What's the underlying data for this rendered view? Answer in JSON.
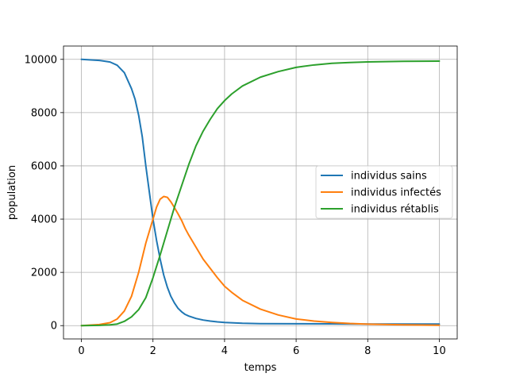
{
  "chart_data": {
    "type": "line",
    "title": "",
    "xlabel": "temps",
    "ylabel": "population",
    "xlim": [
      -0.5,
      10.5
    ],
    "ylim": [
      -500,
      10500
    ],
    "xticks": [
      0,
      2,
      4,
      6,
      8,
      10
    ],
    "yticks": [
      0,
      2000,
      4000,
      6000,
      8000,
      10000
    ],
    "grid": true,
    "legend_position": "center-right",
    "series": [
      {
        "name": "individus sains",
        "color": "#1f77b4",
        "x": [
          0,
          0.5,
          0.8,
          1.0,
          1.2,
          1.4,
          1.5,
          1.6,
          1.7,
          1.8,
          1.9,
          2.0,
          2.1,
          2.2,
          2.3,
          2.4,
          2.5,
          2.6,
          2.7,
          2.8,
          2.9,
          3.0,
          3.2,
          3.4,
          3.6,
          3.8,
          4.0,
          4.5,
          5.0,
          6.0,
          7.0,
          8.0,
          9.0,
          10.0
        ],
        "y": [
          10000,
          9960,
          9900,
          9780,
          9500,
          8900,
          8500,
          7900,
          7100,
          6000,
          5000,
          4000,
          3200,
          2500,
          1900,
          1450,
          1100,
          850,
          650,
          520,
          420,
          360,
          270,
          210,
          170,
          140,
          120,
          90,
          75,
          70,
          65,
          60,
          60,
          60
        ]
      },
      {
        "name": "individus infectés",
        "color": "#ff7f0e",
        "x": [
          0,
          0.5,
          0.8,
          1.0,
          1.2,
          1.4,
          1.6,
          1.8,
          2.0,
          2.1,
          2.2,
          2.3,
          2.4,
          2.5,
          2.6,
          2.7,
          2.8,
          2.9,
          3.0,
          3.2,
          3.4,
          3.6,
          3.8,
          4.0,
          4.2,
          4.5,
          5.0,
          5.5,
          6.0,
          6.5,
          7.0,
          7.5,
          8.0,
          9.0,
          10.0
        ],
        "y": [
          0,
          40,
          110,
          250,
          550,
          1100,
          2000,
          3100,
          4000,
          4450,
          4750,
          4850,
          4820,
          4650,
          4430,
          4200,
          3950,
          3650,
          3400,
          2950,
          2500,
          2150,
          1800,
          1480,
          1250,
          950,
          620,
          400,
          250,
          170,
          120,
          80,
          55,
          30,
          15
        ]
      },
      {
        "name": "individus rétablis",
        "color": "#2ca02c",
        "x": [
          0,
          0.5,
          0.8,
          1.0,
          1.2,
          1.4,
          1.6,
          1.8,
          2.0,
          2.2,
          2.4,
          2.6,
          2.8,
          3.0,
          3.2,
          3.4,
          3.6,
          3.8,
          4.0,
          4.2,
          4.5,
          5.0,
          5.5,
          6.0,
          6.5,
          7.0,
          7.5,
          8.0,
          9.0,
          10.0
        ],
        "y": [
          0,
          10,
          30,
          60,
          160,
          330,
          600,
          1050,
          1800,
          2650,
          3550,
          4450,
          5250,
          6050,
          6750,
          7300,
          7750,
          8150,
          8450,
          8700,
          9000,
          9330,
          9540,
          9700,
          9790,
          9850,
          9880,
          9905,
          9925,
          9935
        ]
      }
    ]
  }
}
